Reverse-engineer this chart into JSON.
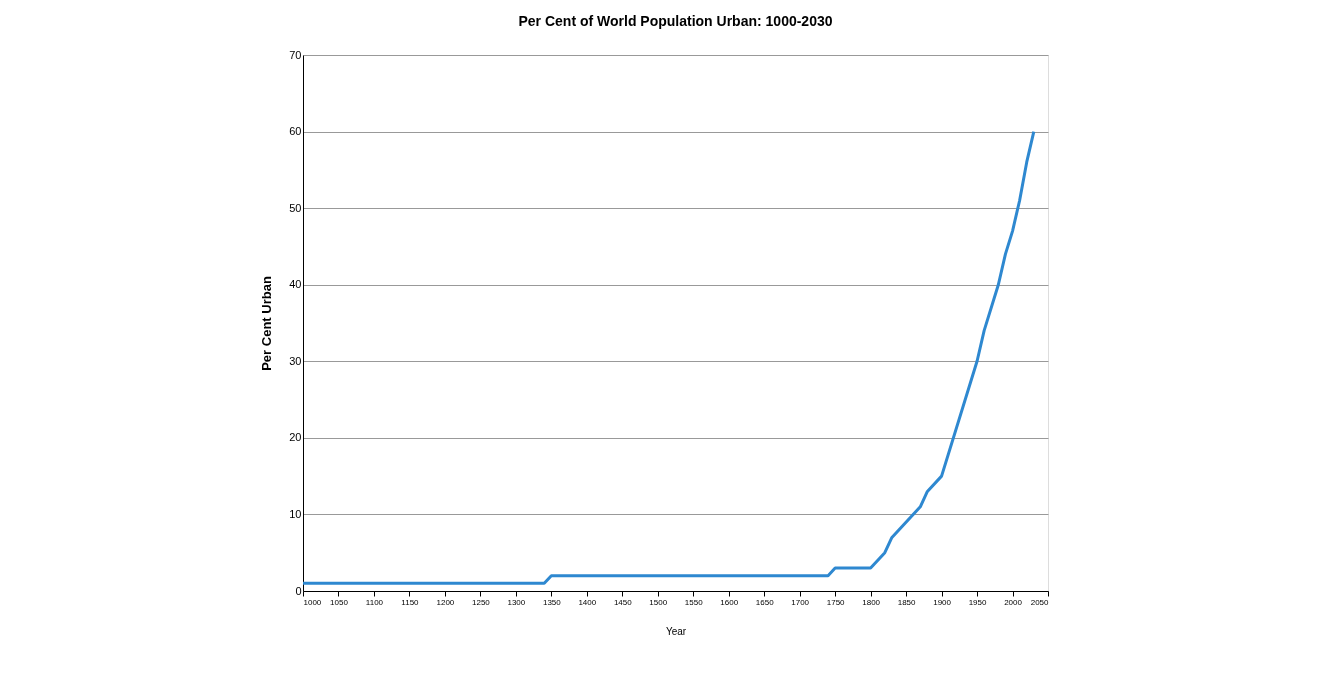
{
  "chart_data": {
    "type": "line",
    "title": "Per Cent of World Population Urban: 1000-2030",
    "xlabel": "Year",
    "ylabel": "Per Cent Urban",
    "x": [
      1000,
      1340,
      1350,
      1740,
      1750,
      1800,
      1820,
      1830,
      1870,
      1880,
      1900,
      1950,
      1960,
      1980,
      1990,
      2000,
      2010,
      2020,
      2030
    ],
    "series": [
      {
        "color": "#2e88d0",
        "values": [
          1,
          1,
          2,
          2,
          3,
          3,
          5,
          7,
          11,
          13,
          15,
          30,
          34,
          40,
          44,
          47,
          51,
          56,
          60
        ]
      }
    ],
    "xlim": [
      1000,
      2050
    ],
    "xticks": [
      1000,
      1050,
      1100,
      1150,
      1200,
      1250,
      1300,
      1350,
      1400,
      1450,
      1500,
      1550,
      1600,
      1650,
      1700,
      1750,
      1800,
      1850,
      1900,
      1950,
      2000,
      2050
    ],
    "ylim": [
      0,
      70
    ],
    "yticks": [
      0,
      10,
      20,
      30,
      40,
      50,
      60,
      70
    ],
    "grid": "y",
    "legend": false,
    "marker": "none",
    "line_style": "solid"
  }
}
